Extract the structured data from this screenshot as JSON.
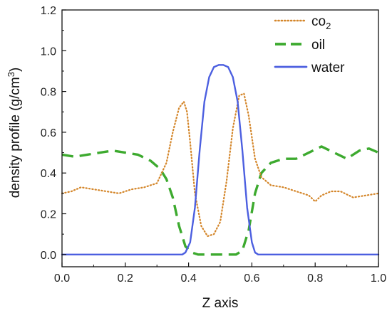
{
  "chart_data": {
    "type": "line",
    "xlabel": "Z axis",
    "ylabel": "density profile (g/cm",
    "ylabel_sup": "3",
    "ylabel_close": ")",
    "xlim": [
      0.0,
      1.0
    ],
    "ylim": [
      -0.06,
      1.2
    ],
    "xticks": [
      "0.0",
      "0.2",
      "0.4",
      "0.6",
      "0.8",
      "1.0"
    ],
    "yticks": [
      "0.0",
      "0.2",
      "0.4",
      "0.6",
      "0.8",
      "1.0",
      "1.2"
    ],
    "legend_position": "top-right",
    "grid": false,
    "series": [
      {
        "name": "co",
        "name_sub": "2",
        "color": "#D4862A",
        "style": "dotted",
        "x": [
          0.0,
          0.03,
          0.06,
          0.1,
          0.14,
          0.18,
          0.22,
          0.26,
          0.3,
          0.33,
          0.35,
          0.37,
          0.385,
          0.395,
          0.405,
          0.42,
          0.44,
          0.46,
          0.48,
          0.5,
          0.52,
          0.54,
          0.56,
          0.575,
          0.59,
          0.61,
          0.63,
          0.66,
          0.7,
          0.74,
          0.78,
          0.8,
          0.82,
          0.85,
          0.88,
          0.92,
          0.96,
          1.0
        ],
        "y": [
          0.3,
          0.31,
          0.33,
          0.32,
          0.31,
          0.3,
          0.32,
          0.33,
          0.35,
          0.45,
          0.6,
          0.72,
          0.75,
          0.7,
          0.55,
          0.3,
          0.14,
          0.09,
          0.1,
          0.16,
          0.36,
          0.62,
          0.78,
          0.79,
          0.68,
          0.47,
          0.38,
          0.34,
          0.33,
          0.31,
          0.29,
          0.26,
          0.29,
          0.31,
          0.31,
          0.28,
          0.29,
          0.3
        ]
      },
      {
        "name": "oil",
        "color": "#3DAA2F",
        "style": "dashed",
        "x": [
          0.0,
          0.04,
          0.08,
          0.12,
          0.16,
          0.2,
          0.24,
          0.28,
          0.31,
          0.33,
          0.35,
          0.37,
          0.39,
          0.41,
          0.43,
          0.45,
          0.5,
          0.55,
          0.57,
          0.59,
          0.61,
          0.63,
          0.66,
          0.7,
          0.74,
          0.78,
          0.82,
          0.86,
          0.9,
          0.94,
          0.97,
          1.0
        ],
        "y": [
          0.49,
          0.48,
          0.49,
          0.5,
          0.51,
          0.5,
          0.49,
          0.46,
          0.42,
          0.37,
          0.28,
          0.14,
          0.04,
          0.01,
          0.0,
          0.0,
          0.0,
          0.0,
          0.02,
          0.12,
          0.3,
          0.4,
          0.45,
          0.47,
          0.47,
          0.5,
          0.53,
          0.5,
          0.47,
          0.51,
          0.52,
          0.5
        ]
      },
      {
        "name": "water",
        "color": "#4C5FE0",
        "style": "solid",
        "x": [
          0.0,
          0.38,
          0.39,
          0.405,
          0.42,
          0.435,
          0.45,
          0.465,
          0.48,
          0.495,
          0.51,
          0.525,
          0.54,
          0.555,
          0.57,
          0.585,
          0.6,
          0.61,
          0.62,
          1.0
        ],
        "y": [
          0.0,
          0.0,
          0.01,
          0.06,
          0.23,
          0.51,
          0.75,
          0.87,
          0.92,
          0.93,
          0.93,
          0.92,
          0.87,
          0.75,
          0.51,
          0.23,
          0.06,
          0.01,
          0.0,
          0.0
        ]
      }
    ]
  }
}
